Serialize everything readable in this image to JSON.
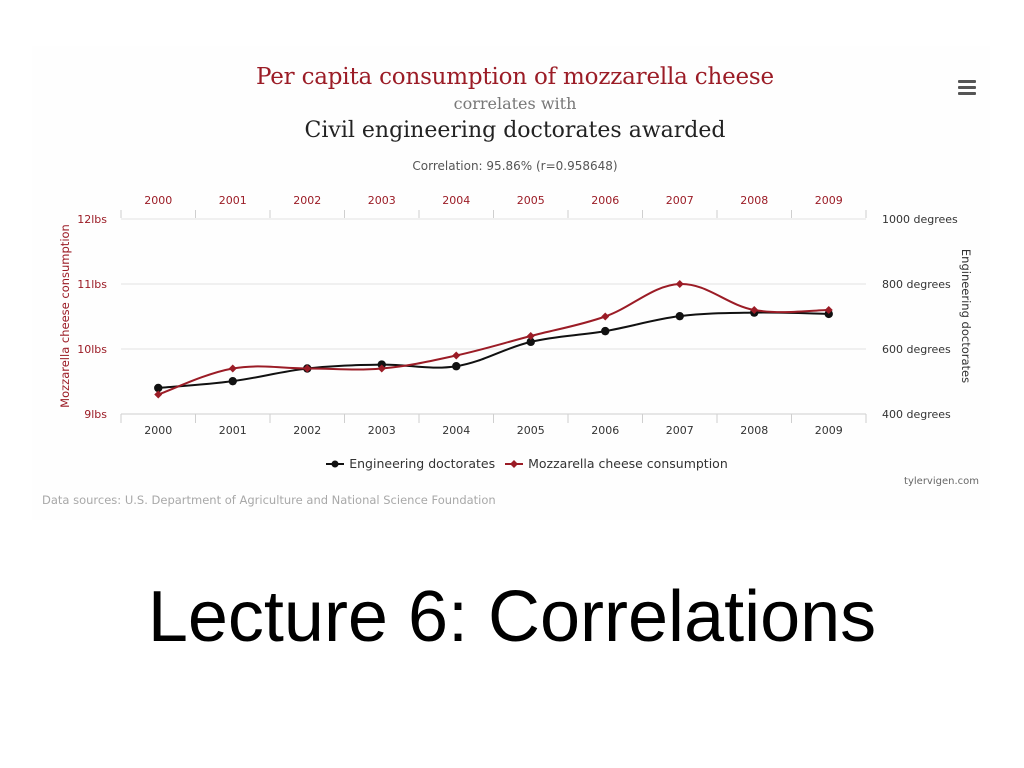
{
  "header": {
    "title": "Per capita consumption of mozzarella cheese",
    "connector": "correlates with",
    "subtitle": "Civil engineering doctorates awarded",
    "correlation": "Correlation: 95.86% (r=0.958648)"
  },
  "footer": {
    "source": "Data sources: U.S. Department of Agriculture and National Science Foundation",
    "credit": "tylervigen.com"
  },
  "slide": {
    "title": "Lecture 6: Correlations"
  },
  "colors": {
    "accent": "#9b1c26",
    "secondary": "#222222"
  },
  "icons": {
    "menu": "hamburger-menu-icon"
  },
  "chart_data": {
    "type": "line",
    "x": [
      2000,
      2001,
      2002,
      2003,
      2004,
      2005,
      2006,
      2007,
      2008,
      2009
    ],
    "left_axis": {
      "label": "Mozzarella cheese consumption",
      "ticks": [
        "9lbs",
        "10lbs",
        "11lbs",
        "12lbs"
      ],
      "range": [
        9,
        12
      ]
    },
    "right_axis": {
      "label": "Engineering doctorates",
      "ticks": [
        "400 degrees",
        "600 degrees",
        "800 degrees",
        "1000 degrees"
      ],
      "range": [
        400,
        1000
      ]
    },
    "series": [
      {
        "name": "Engineering doctorates",
        "axis": "right",
        "color": "#111111",
        "marker": "circle",
        "values": [
          480,
          501,
          540,
          552,
          547,
          622,
          655,
          701,
          712,
          708
        ]
      },
      {
        "name": "Mozzarella cheese consumption",
        "axis": "left",
        "color": "#9b1c26",
        "marker": "diamond",
        "values": [
          9.3,
          9.7,
          9.7,
          9.7,
          9.9,
          10.2,
          10.5,
          11.0,
          10.6,
          10.6
        ]
      }
    ],
    "grid": true,
    "legend": "bottom-center"
  }
}
